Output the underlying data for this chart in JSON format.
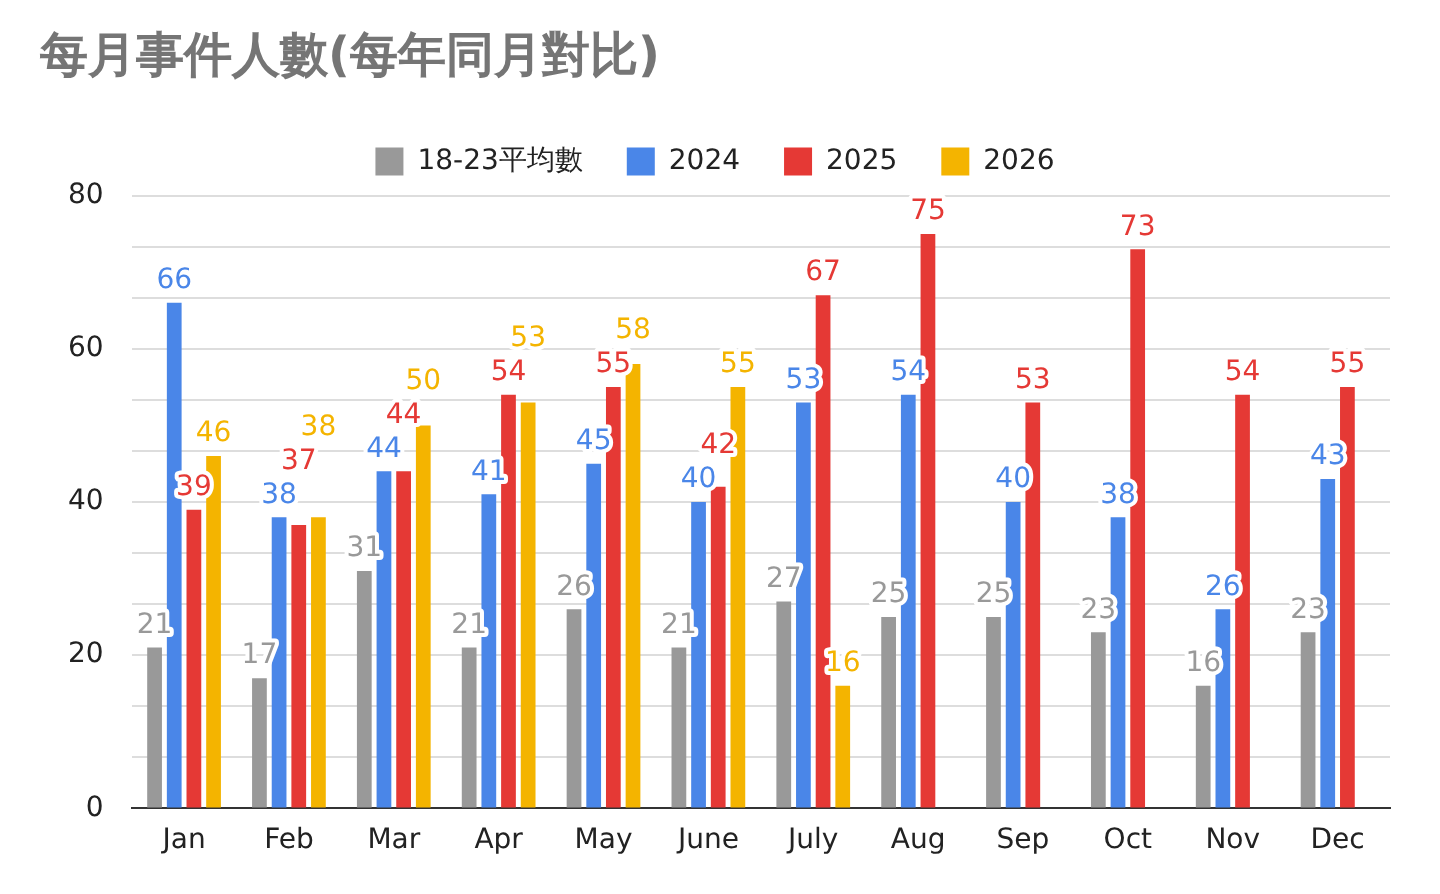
{
  "chart_data": {
    "type": "bar",
    "title": "每月事件人數(每年同月對比)",
    "categories": [
      "Jan",
      "Feb",
      "Mar",
      "Apr",
      "May",
      "June",
      "July",
      "Aug",
      "Sep",
      "Oct",
      "Nov",
      "Dec"
    ],
    "series": [
      {
        "name": "18-23平均數",
        "color": "#999999",
        "values": [
          21,
          17,
          31,
          21,
          26,
          21,
          27,
          25,
          25,
          23,
          16,
          23
        ]
      },
      {
        "name": "2024",
        "color": "#4a86e8",
        "values": [
          66,
          38,
          44,
          41,
          45,
          40,
          53,
          54,
          40,
          38,
          26,
          43
        ]
      },
      {
        "name": "2025",
        "color": "#e53935",
        "values": [
          39,
          37,
          44,
          54,
          55,
          42,
          67,
          75,
          53,
          73,
          54,
          55
        ]
      },
      {
        "name": "2026",
        "color": "#f4b400",
        "values": [
          46,
          38,
          50,
          53,
          58,
          55,
          16,
          null,
          null,
          null,
          null,
          null
        ]
      }
    ],
    "ylim": [
      0,
      80
    ],
    "yticks": [
      0,
      {
        "value": 6.667,
        "label": null
      },
      {
        "value": 13.333,
        "label": null
      },
      20,
      {
        "value": 26.667,
        "label": null
      },
      {
        "value": 33.333,
        "label": null
      },
      40,
      {
        "value": 46.667,
        "label": null
      },
      {
        "value": 53.333,
        "label": null
      },
      60,
      {
        "value": 66.667,
        "label": null
      },
      {
        "value": 73.333,
        "label": null
      },
      80
    ],
    "grid": "y",
    "legend": "top",
    "data_labels": true
  }
}
